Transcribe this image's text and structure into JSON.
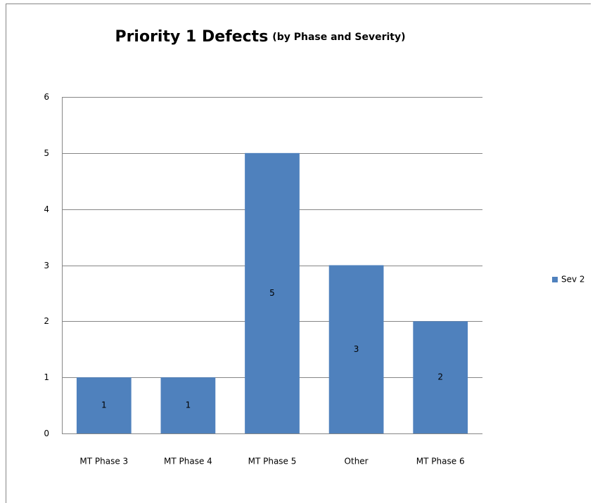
{
  "chart_data": {
    "type": "bar",
    "title": "Priority 1 Defects",
    "subtitle": "(by Phase and Severity)",
    "categories": [
      "MT Phase 3",
      "MT Phase 4",
      "MT Phase 5",
      "Other",
      "MT Phase 6"
    ],
    "series": [
      {
        "name": "Sev 2",
        "color": "#4f81bd",
        "values": [
          1,
          1,
          5,
          3,
          2
        ]
      }
    ],
    "ylim": [
      0,
      6
    ],
    "yticks": [
      0,
      1,
      2,
      3,
      4,
      5,
      6
    ],
    "grid": true,
    "legend": "right",
    "data_labels": true
  }
}
